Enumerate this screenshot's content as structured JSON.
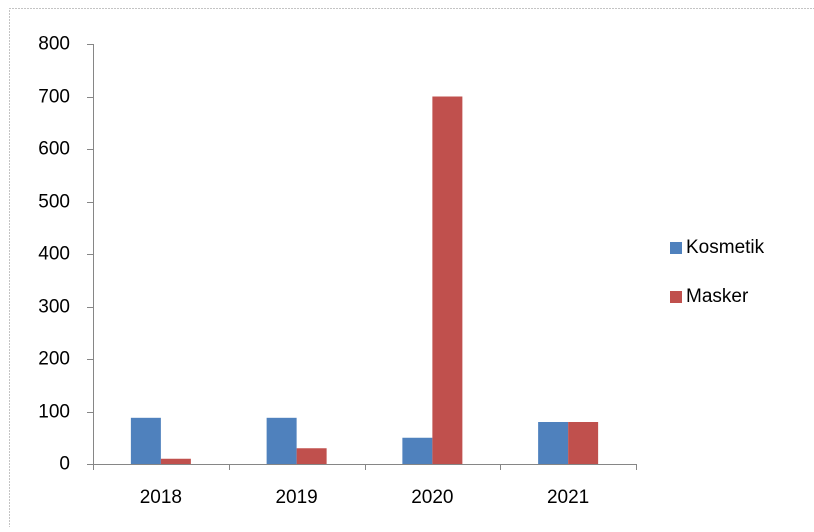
{
  "chart_data": {
    "type": "bar",
    "categories": [
      "2018",
      "2019",
      "2020",
      "2021"
    ],
    "series": [
      {
        "name": "Kosmetik",
        "color": "#4f81bd",
        "values": [
          88,
          88,
          50,
          80
        ]
      },
      {
        "name": "Masker",
        "color": "#c0504d",
        "values": [
          10,
          30,
          700,
          80
        ]
      }
    ],
    "ylim": [
      0,
      800
    ],
    "yticks": [
      0,
      100,
      200,
      300,
      400,
      500,
      600,
      700,
      800
    ],
    "grid": false,
    "legend": "right"
  }
}
